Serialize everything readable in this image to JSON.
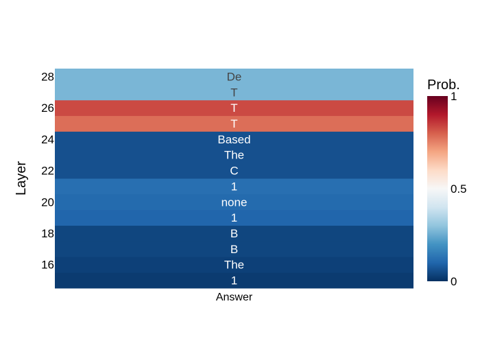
{
  "chart_data": {
    "type": "heatmap",
    "title": "",
    "xlabel": "",
    "ylabel": "Layer",
    "x_categories": [
      "Answer"
    ],
    "y_layers": [
      15,
      16,
      17,
      18,
      19,
      20,
      21,
      22,
      23,
      24,
      25,
      26,
      27,
      28
    ],
    "y_tick_labels": [
      "16",
      "18",
      "20",
      "22",
      "24",
      "26",
      "28"
    ],
    "y_tick_values": [
      16,
      18,
      20,
      22,
      24,
      26,
      28
    ],
    "cells": [
      {
        "layer": 15,
        "token": "1",
        "prob": 0.02
      },
      {
        "layer": 16,
        "token": "The",
        "prob": 0.03
      },
      {
        "layer": 17,
        "token": "B",
        "prob": 0.04
      },
      {
        "layer": 18,
        "token": "B",
        "prob": 0.04
      },
      {
        "layer": 19,
        "token": "1",
        "prob": 0.1
      },
      {
        "layer": 20,
        "token": "none",
        "prob": 0.11
      },
      {
        "layer": 21,
        "token": "1",
        "prob": 0.12
      },
      {
        "layer": 22,
        "token": "C",
        "prob": 0.06
      },
      {
        "layer": 23,
        "token": "The",
        "prob": 0.06
      },
      {
        "layer": 24,
        "token": "Based",
        "prob": 0.06
      },
      {
        "layer": 25,
        "token": "T",
        "prob": 0.78
      },
      {
        "layer": 26,
        "token": "T",
        "prob": 0.83
      },
      {
        "layer": 27,
        "token": "T",
        "prob": 0.27
      },
      {
        "layer": 28,
        "token": "De",
        "prob": 0.27
      }
    ],
    "colorbar": {
      "title": "Prob.",
      "range": [
        0,
        1
      ],
      "tick_labels": [
        "0",
        "0.5",
        "1"
      ],
      "tick_values": [
        0,
        0.5,
        1
      ],
      "colorscale": [
        "#053061",
        "#2166ac",
        "#4393c3",
        "#92c5de",
        "#d1e5f0",
        "#f7f7f7",
        "#fddbc7",
        "#f4a582",
        "#d6604d",
        "#b2182b",
        "#67001f"
      ]
    }
  }
}
